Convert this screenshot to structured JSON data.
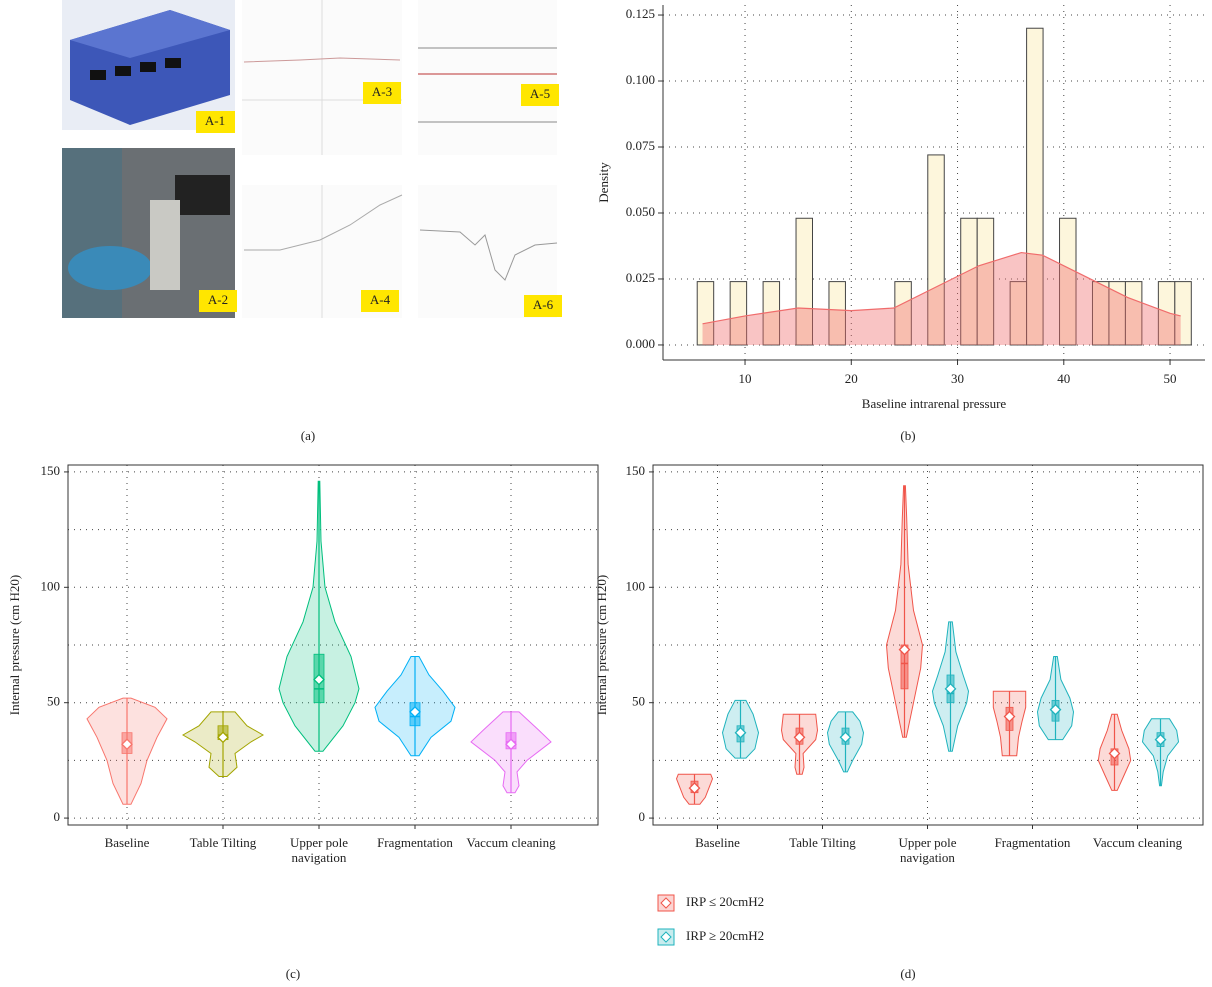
{
  "photo_panel": {
    "labels": [
      "A-1",
      "A-2",
      "A-3",
      "A-4",
      "A-5",
      "A-6"
    ]
  },
  "panel_labels": [
    "(a)",
    "(b)",
    "(c)",
    "(d)"
  ],
  "chart_data": [
    {
      "type": "histogram",
      "xlabel": "Baseline intrarenal pressure",
      "ylabel": "Density",
      "bins": [
        5.5,
        7.05,
        8.6,
        10.15,
        11.7,
        13.25,
        14.8,
        16.35,
        17.9,
        19.45,
        21,
        22.55,
        24.1,
        25.65,
        27.2,
        28.75,
        30.3,
        31.85,
        33.4,
        34.95,
        36.5,
        38.05,
        39.6,
        41.15,
        42.7,
        44.25,
        45.8,
        47.35,
        48.9,
        50.45,
        52
      ],
      "values": [
        0.024,
        0,
        0.024,
        0,
        0.024,
        0,
        0.048,
        0,
        0.024,
        0,
        0,
        0,
        0.024,
        0,
        0.072,
        0,
        0.048,
        0.048,
        0,
        0.024,
        0.12,
        0,
        0.048,
        0,
        0.024,
        0.024,
        0.024,
        0,
        0.024,
        0.024
      ],
      "color": "#fdf6dc",
      "density_curve": {
        "x": [
          6,
          10,
          15,
          20,
          24,
          28,
          32,
          36,
          38,
          42,
          46,
          50,
          51
        ],
        "y": [
          0.008,
          0.011,
          0.014,
          0.013,
          0.014,
          0.022,
          0.03,
          0.035,
          0.034,
          0.026,
          0.018,
          0.012,
          0.011
        ],
        "color": "#f06c6c"
      },
      "xlim": [
        2.28,
        53.29
      ],
      "ylim": [
        -0.0057,
        0.1288
      ],
      "xticks": [
        10,
        20,
        30,
        40,
        50
      ],
      "yticks": [
        {
          "value": 0,
          "label": "0.000"
        },
        0.025,
        {
          "value": 0.05,
          "label": "0.050"
        },
        0.075,
        {
          "value": 0.1,
          "label": "0.100"
        },
        0.125
      ],
      "grid": true
    },
    {
      "type": "violin",
      "ylabel": "Internal pressure (cm H20)",
      "categories": [
        "Baseline",
        "Table Tilting",
        "Upper pole navigation",
        "Fragmentation",
        "Vaccum cleaning"
      ],
      "series": [
        {
          "colors": [
            "#f8766d",
            "#a3a500",
            "#00bf7d",
            "#00b0f6",
            "#e76bf3"
          ],
          "groups": [
            {
              "min": 6,
              "q1": 28,
              "median": 32,
              "q3": 37,
              "max": 52,
              "mean": 32,
              "kde_y": [
                6,
                15,
                25,
                35,
                43,
                48,
                52
              ],
              "kde_density": [
                0.1,
                0.35,
                0.5,
                0.75,
                1,
                0.7,
                0.1
              ]
            },
            {
              "min": 18,
              "q1": 34,
              "median": 36,
              "q3": 40,
              "max": 46,
              "mean": 35,
              "kde_y": [
                18,
                22,
                28,
                33,
                36,
                40,
                46
              ],
              "kde_density": [
                0.1,
                0.35,
                0.3,
                0.7,
                1,
                0.6,
                0.3
              ]
            },
            {
              "min": 29,
              "q1": 50,
              "median": 56,
              "q3": 71,
              "max": 146,
              "mean": 60,
              "kde_y": [
                29,
                40,
                50,
                56,
                70,
                85,
                100,
                120,
                146
              ],
              "kde_density": [
                0.1,
                0.6,
                0.9,
                1,
                0.8,
                0.4,
                0.15,
                0.05,
                0.02
              ]
            },
            {
              "min": 27,
              "q1": 40,
              "median": 44,
              "q3": 50,
              "max": 70,
              "mean": 46,
              "kde_y": [
                27,
                35,
                42,
                48,
                55,
                62,
                70
              ],
              "kde_density": [
                0.1,
                0.4,
                0.9,
                1,
                0.7,
                0.35,
                0.1
              ]
            },
            {
              "min": 11,
              "q1": 30,
              "median": 33,
              "q3": 37,
              "max": 46,
              "mean": 32,
              "kde_y": [
                11,
                14,
                20,
                25,
                33,
                38,
                46
              ],
              "kde_density": [
                0.1,
                0.2,
                0.15,
                0.4,
                1,
                0.7,
                0.2
              ]
            }
          ]
        }
      ],
      "ylim": [
        -3,
        153
      ],
      "yticks": [
        0,
        50,
        100,
        150
      ],
      "minor_yticks": [
        25,
        75,
        125
      ],
      "grid": true
    },
    {
      "type": "violin",
      "ylabel": "Internal pressure (cm H20)",
      "categories": [
        "Baseline",
        "Table Tilting",
        "Upper pole navigation",
        "Fragmentation",
        "Vaccum cleaning"
      ],
      "series": [
        {
          "name": "IRP ≤ 20cmH2",
          "color": "#f0554a",
          "groups": [
            {
              "min": 6,
              "q1": 11,
              "median": 13,
              "q3": 16,
              "max": 19,
              "mean": 13,
              "kde_y": [
                6,
                9,
                13,
                17,
                19
              ],
              "kde_density": [
                0.3,
                0.6,
                0.8,
                1,
                0.9
              ]
            },
            {
              "min": 19,
              "q1": 32,
              "median": 35,
              "q3": 39,
              "max": 45,
              "mean": 35,
              "kde_y": [
                19,
                22,
                28,
                34,
                38,
                45
              ],
              "kde_density": [
                0.15,
                0.25,
                0.2,
                0.9,
                1,
                0.9
              ]
            },
            {
              "min": 35,
              "q1": 56,
              "median": 67,
              "q3": 75,
              "max": 144,
              "mean": 73,
              "kde_y": [
                35,
                50,
                65,
                75,
                90,
                110,
                130,
                144
              ],
              "kde_density": [
                0.1,
                0.5,
                0.9,
                1,
                0.5,
                0.2,
                0.12,
                0.05
              ]
            },
            {
              "min": 27,
              "q1": 38,
              "median": 44,
              "q3": 48,
              "max": 55,
              "mean": 44,
              "kde_y": [
                27,
                35,
                42,
                48,
                55
              ],
              "kde_density": [
                0.4,
                0.5,
                0.7,
                0.9,
                0.9
              ]
            },
            {
              "min": 12,
              "q1": 23,
              "median": 27,
              "q3": 30,
              "max": 45,
              "mean": 28,
              "kde_y": [
                12,
                18,
                25,
                30,
                38,
                45
              ],
              "kde_density": [
                0.15,
                0.5,
                0.9,
                0.8,
                0.4,
                0.15
              ]
            }
          ]
        },
        {
          "name": "IRP ≥ 20cmH2",
          "color": "#1fb3bd",
          "groups": [
            {
              "min": 26,
              "q1": 33,
              "median": 37,
              "q3": 40,
              "max": 51,
              "mean": 37,
              "kde_y": [
                26,
                30,
                37,
                45,
                51
              ],
              "kde_density": [
                0.3,
                0.8,
                1,
                0.7,
                0.3
              ]
            },
            {
              "min": 20,
              "q1": 32,
              "median": 36,
              "q3": 39,
              "max": 46,
              "mean": 35,
              "kde_y": [
                20,
                25,
                32,
                37,
                42,
                46
              ],
              "kde_density": [
                0.1,
                0.4,
                0.9,
                1,
                0.8,
                0.4
              ]
            },
            {
              "min": 29,
              "q1": 50,
              "median": 54,
              "q3": 62,
              "max": 85,
              "mean": 56,
              "kde_y": [
                29,
                40,
                50,
                55,
                62,
                72,
                85
              ],
              "kde_density": [
                0.1,
                0.4,
                0.9,
                1,
                0.7,
                0.3,
                0.1
              ]
            },
            {
              "min": 34,
              "q1": 42,
              "median": 48,
              "q3": 51,
              "max": 70,
              "mean": 47,
              "kde_y": [
                34,
                40,
                46,
                52,
                60,
                70
              ],
              "kde_density": [
                0.4,
                0.9,
                1,
                0.8,
                0.3,
                0.1
              ]
            },
            {
              "min": 14,
              "q1": 31,
              "median": 34,
              "q3": 37,
              "max": 43,
              "mean": 34,
              "kde_y": [
                14,
                20,
                27,
                33,
                38,
                43
              ],
              "kde_density": [
                0.05,
                0.15,
                0.4,
                1,
                0.9,
                0.5
              ]
            }
          ]
        }
      ],
      "ylim": [
        -3,
        153
      ],
      "yticks": [
        0,
        50,
        100,
        150
      ],
      "minor_yticks": [
        25,
        75,
        125
      ],
      "grid": true
    }
  ]
}
